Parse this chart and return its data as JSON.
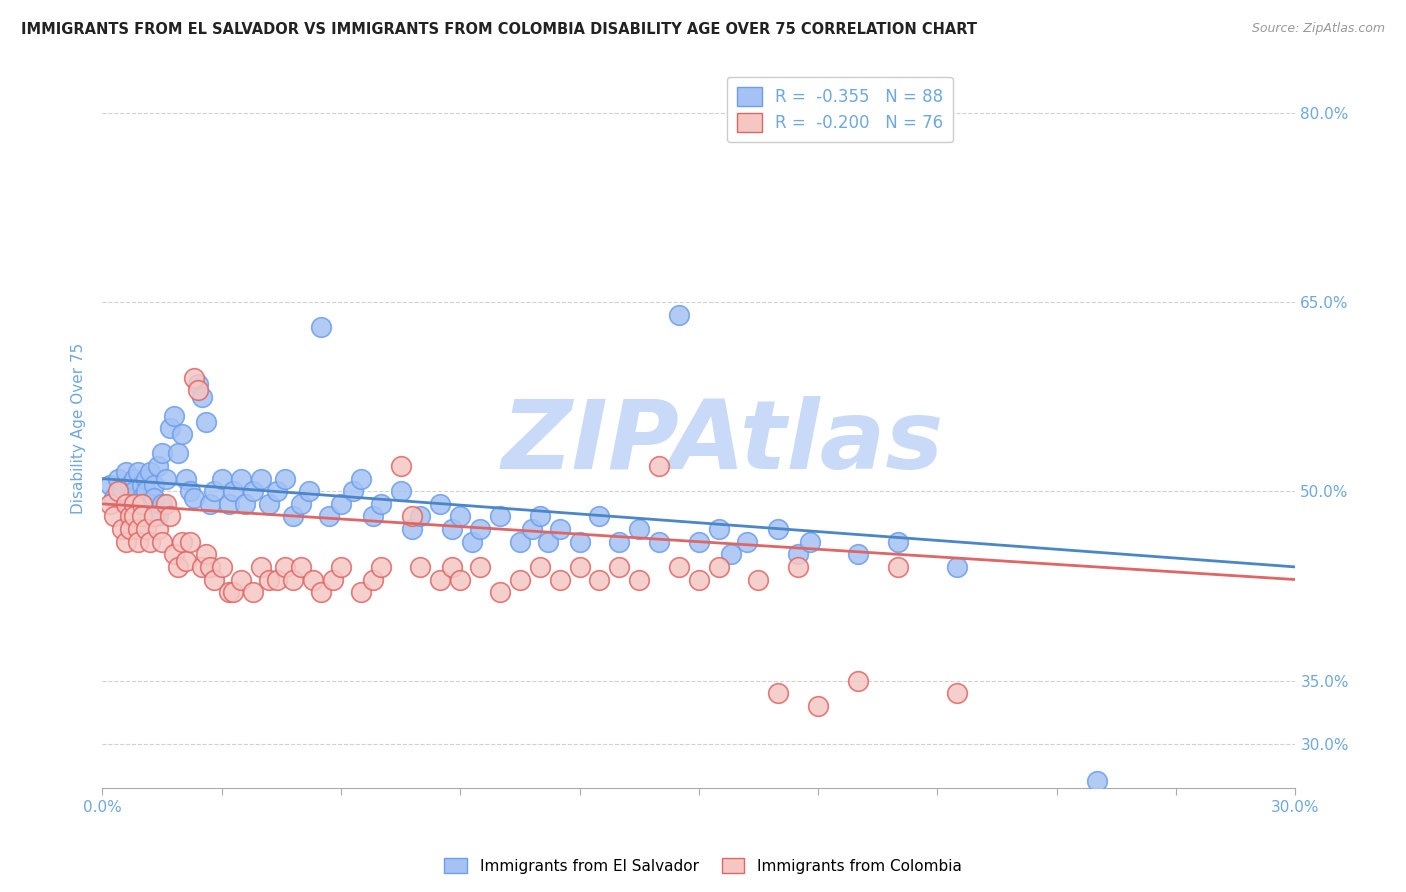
{
  "title": "IMMIGRANTS FROM EL SALVADOR VS IMMIGRANTS FROM COLOMBIA DISABILITY AGE OVER 75 CORRELATION CHART",
  "source": "Source: ZipAtlas.com",
  "ylabel": "Disability Age Over 75",
  "ytick_values": [
    0.3,
    0.35,
    0.5,
    0.65,
    0.8
  ],
  "xlim": [
    0.0,
    0.3
  ],
  "ylim": [
    0.265,
    0.835
  ],
  "r_salvador": -0.355,
  "n_salvador": 88,
  "r_colombia": -0.2,
  "n_colombia": 76,
  "color_salvador_face": "#a4c2f4",
  "color_salvador_edge": "#6d9eeb",
  "color_colombia_face": "#f4c7c3",
  "color_colombia_edge": "#e06666",
  "color_line_salvador": "#4a86c8",
  "color_line_colombia": "#e06666",
  "color_axis_text": "#6fa8dc",
  "color_title": "#222222",
  "color_source": "#999999",
  "watermark": "ZIPAtlas",
  "watermark_color": "#c9daf8",
  "legend_label_salvador": "Immigrants from El Salvador",
  "legend_label_colombia": "Immigrants from Colombia",
  "background_color": "#ffffff",
  "grid_color": "#cccccc",
  "scatter_salvador": [
    [
      0.002,
      0.505
    ],
    [
      0.003,
      0.495
    ],
    [
      0.004,
      0.51
    ],
    [
      0.005,
      0.5
    ],
    [
      0.006,
      0.49
    ],
    [
      0.006,
      0.515
    ],
    [
      0.007,
      0.505
    ],
    [
      0.007,
      0.495
    ],
    [
      0.008,
      0.51
    ],
    [
      0.008,
      0.5
    ],
    [
      0.009,
      0.49
    ],
    [
      0.009,
      0.515
    ],
    [
      0.01,
      0.505
    ],
    [
      0.01,
      0.495
    ],
    [
      0.011,
      0.51
    ],
    [
      0.011,
      0.5
    ],
    [
      0.012,
      0.49
    ],
    [
      0.012,
      0.515
    ],
    [
      0.013,
      0.505
    ],
    [
      0.013,
      0.495
    ],
    [
      0.014,
      0.52
    ],
    [
      0.014,
      0.48
    ],
    [
      0.015,
      0.53
    ],
    [
      0.015,
      0.49
    ],
    [
      0.016,
      0.51
    ],
    [
      0.017,
      0.55
    ],
    [
      0.018,
      0.56
    ],
    [
      0.019,
      0.53
    ],
    [
      0.02,
      0.545
    ],
    [
      0.021,
      0.51
    ],
    [
      0.022,
      0.5
    ],
    [
      0.023,
      0.495
    ],
    [
      0.024,
      0.585
    ],
    [
      0.025,
      0.575
    ],
    [
      0.026,
      0.555
    ],
    [
      0.027,
      0.49
    ],
    [
      0.028,
      0.5
    ],
    [
      0.03,
      0.51
    ],
    [
      0.032,
      0.49
    ],
    [
      0.033,
      0.5
    ],
    [
      0.035,
      0.51
    ],
    [
      0.036,
      0.49
    ],
    [
      0.038,
      0.5
    ],
    [
      0.04,
      0.51
    ],
    [
      0.042,
      0.49
    ],
    [
      0.044,
      0.5
    ],
    [
      0.046,
      0.51
    ],
    [
      0.048,
      0.48
    ],
    [
      0.05,
      0.49
    ],
    [
      0.052,
      0.5
    ],
    [
      0.055,
      0.63
    ],
    [
      0.057,
      0.48
    ],
    [
      0.06,
      0.49
    ],
    [
      0.063,
      0.5
    ],
    [
      0.065,
      0.51
    ],
    [
      0.068,
      0.48
    ],
    [
      0.07,
      0.49
    ],
    [
      0.075,
      0.5
    ],
    [
      0.078,
      0.47
    ],
    [
      0.08,
      0.48
    ],
    [
      0.085,
      0.49
    ],
    [
      0.088,
      0.47
    ],
    [
      0.09,
      0.48
    ],
    [
      0.093,
      0.46
    ],
    [
      0.095,
      0.47
    ],
    [
      0.1,
      0.48
    ],
    [
      0.105,
      0.46
    ],
    [
      0.108,
      0.47
    ],
    [
      0.11,
      0.48
    ],
    [
      0.112,
      0.46
    ],
    [
      0.115,
      0.47
    ],
    [
      0.12,
      0.46
    ],
    [
      0.125,
      0.48
    ],
    [
      0.13,
      0.46
    ],
    [
      0.135,
      0.47
    ],
    [
      0.14,
      0.46
    ],
    [
      0.145,
      0.64
    ],
    [
      0.15,
      0.46
    ],
    [
      0.155,
      0.47
    ],
    [
      0.158,
      0.45
    ],
    [
      0.162,
      0.46
    ],
    [
      0.17,
      0.47
    ],
    [
      0.175,
      0.45
    ],
    [
      0.178,
      0.46
    ],
    [
      0.19,
      0.45
    ],
    [
      0.2,
      0.46
    ],
    [
      0.215,
      0.44
    ],
    [
      0.25,
      0.27
    ]
  ],
  "scatter_colombia": [
    [
      0.002,
      0.49
    ],
    [
      0.003,
      0.48
    ],
    [
      0.004,
      0.5
    ],
    [
      0.005,
      0.47
    ],
    [
      0.006,
      0.46
    ],
    [
      0.006,
      0.49
    ],
    [
      0.007,
      0.48
    ],
    [
      0.007,
      0.47
    ],
    [
      0.008,
      0.49
    ],
    [
      0.008,
      0.48
    ],
    [
      0.009,
      0.47
    ],
    [
      0.009,
      0.46
    ],
    [
      0.01,
      0.49
    ],
    [
      0.01,
      0.48
    ],
    [
      0.011,
      0.47
    ],
    [
      0.012,
      0.46
    ],
    [
      0.013,
      0.48
    ],
    [
      0.014,
      0.47
    ],
    [
      0.015,
      0.46
    ],
    [
      0.016,
      0.49
    ],
    [
      0.017,
      0.48
    ],
    [
      0.018,
      0.45
    ],
    [
      0.019,
      0.44
    ],
    [
      0.02,
      0.46
    ],
    [
      0.021,
      0.445
    ],
    [
      0.022,
      0.46
    ],
    [
      0.023,
      0.59
    ],
    [
      0.024,
      0.58
    ],
    [
      0.025,
      0.44
    ],
    [
      0.026,
      0.45
    ],
    [
      0.027,
      0.44
    ],
    [
      0.028,
      0.43
    ],
    [
      0.03,
      0.44
    ],
    [
      0.032,
      0.42
    ],
    [
      0.033,
      0.42
    ],
    [
      0.035,
      0.43
    ],
    [
      0.038,
      0.42
    ],
    [
      0.04,
      0.44
    ],
    [
      0.042,
      0.43
    ],
    [
      0.044,
      0.43
    ],
    [
      0.046,
      0.44
    ],
    [
      0.048,
      0.43
    ],
    [
      0.05,
      0.44
    ],
    [
      0.053,
      0.43
    ],
    [
      0.055,
      0.42
    ],
    [
      0.058,
      0.43
    ],
    [
      0.06,
      0.44
    ],
    [
      0.065,
      0.42
    ],
    [
      0.068,
      0.43
    ],
    [
      0.07,
      0.44
    ],
    [
      0.075,
      0.52
    ],
    [
      0.078,
      0.48
    ],
    [
      0.08,
      0.44
    ],
    [
      0.085,
      0.43
    ],
    [
      0.088,
      0.44
    ],
    [
      0.09,
      0.43
    ],
    [
      0.095,
      0.44
    ],
    [
      0.1,
      0.42
    ],
    [
      0.105,
      0.43
    ],
    [
      0.11,
      0.44
    ],
    [
      0.115,
      0.43
    ],
    [
      0.12,
      0.44
    ],
    [
      0.125,
      0.43
    ],
    [
      0.13,
      0.44
    ],
    [
      0.135,
      0.43
    ],
    [
      0.14,
      0.52
    ],
    [
      0.145,
      0.44
    ],
    [
      0.15,
      0.43
    ],
    [
      0.155,
      0.44
    ],
    [
      0.165,
      0.43
    ],
    [
      0.17,
      0.34
    ],
    [
      0.175,
      0.44
    ],
    [
      0.18,
      0.33
    ],
    [
      0.19,
      0.35
    ],
    [
      0.2,
      0.44
    ],
    [
      0.215,
      0.34
    ]
  ]
}
